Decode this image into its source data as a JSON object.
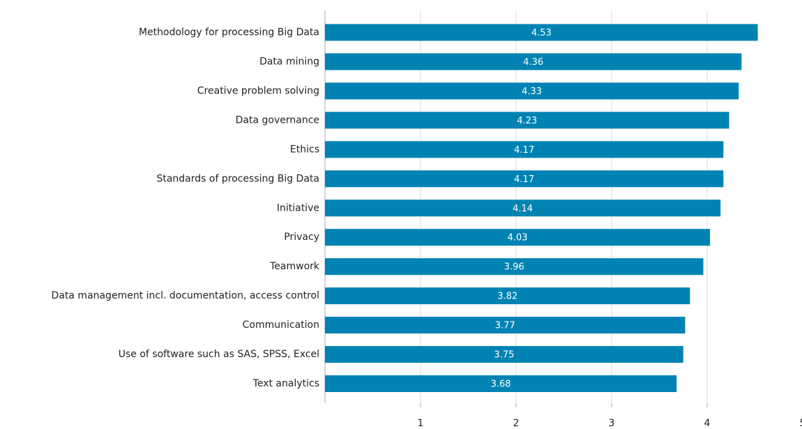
{
  "chart_data": {
    "type": "bar",
    "orientation": "horizontal",
    "categories": [
      "Methodology for processing Big Data",
      "Data mining",
      "Creative problem solving",
      "Data governance",
      "Ethics",
      "Standards of processing Big Data",
      "Initiative",
      "Privacy",
      "Teamwork",
      "Data management incl. documentation, access control",
      "Communication",
      "Use of software such as SAS, SPSS, Excel",
      "Text analytics"
    ],
    "values": [
      4.53,
      4.36,
      4.33,
      4.23,
      4.17,
      4.17,
      4.14,
      4.03,
      3.96,
      3.82,
      3.77,
      3.75,
      3.68
    ],
    "color": "#0083b3",
    "xlim": [
      0,
      5
    ],
    "xticks": [
      1,
      2,
      3,
      4,
      5
    ],
    "grid": true
  }
}
